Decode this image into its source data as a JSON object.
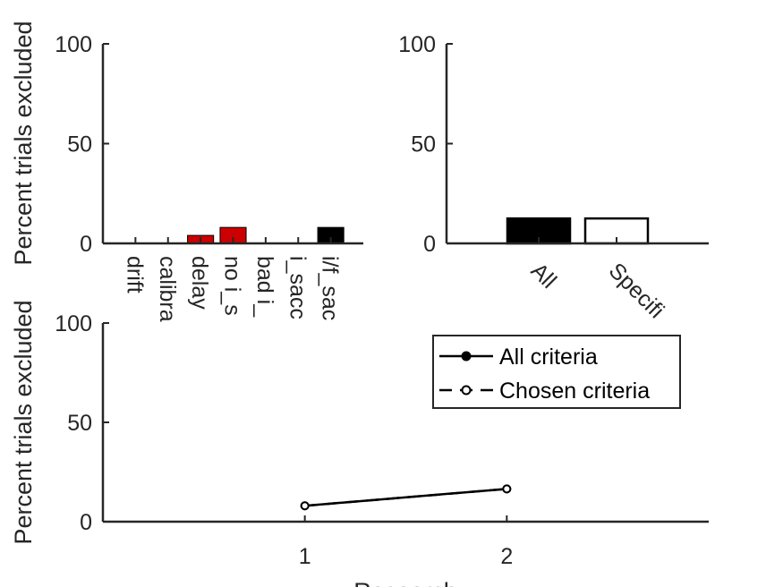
{
  "chart_data": [
    {
      "type": "bar",
      "ylabel": "Percent trials excluded",
      "ylim": [
        0,
        100
      ],
      "yticks": [
        0,
        50,
        100
      ],
      "categories": [
        "drift",
        "calibra",
        "delay",
        "no i_s",
        "bad i_",
        "i_sacc",
        "i/f_sac"
      ],
      "values": [
        0,
        0,
        4,
        8,
        0,
        0,
        8
      ],
      "colors": [
        "#cc0000",
        "#cc0000",
        "#cc0000",
        "#cc0000",
        "#cc0000",
        "#cc0000",
        "#000000"
      ],
      "grid": false
    },
    {
      "type": "bar",
      "ylabel": "",
      "ylim": [
        0,
        100
      ],
      "yticks": [
        0,
        50,
        100
      ],
      "categories": [
        "All",
        "Specifi"
      ],
      "values": [
        12.5,
        12.5
      ],
      "fills": [
        "#000000",
        "#ffffff"
      ],
      "grid": false
    },
    {
      "type": "line",
      "ylabel": "Percent trials excluded",
      "xlabel": "Research",
      "ylim": [
        0,
        100
      ],
      "xlim": [
        0,
        3
      ],
      "yticks": [
        0,
        50,
        100
      ],
      "xticks": [
        1,
        2
      ],
      "legend_position": "top-right",
      "series": [
        {
          "name": "All criteria",
          "x": [
            1,
            2
          ],
          "y": [
            8,
            16.5
          ],
          "style": "solid",
          "marker": "filled"
        },
        {
          "name": "Chosen criteria",
          "x": [
            1,
            2
          ],
          "y": [
            8,
            16.5
          ],
          "style": "dashed",
          "marker": "open"
        }
      ],
      "grid": false
    }
  ]
}
